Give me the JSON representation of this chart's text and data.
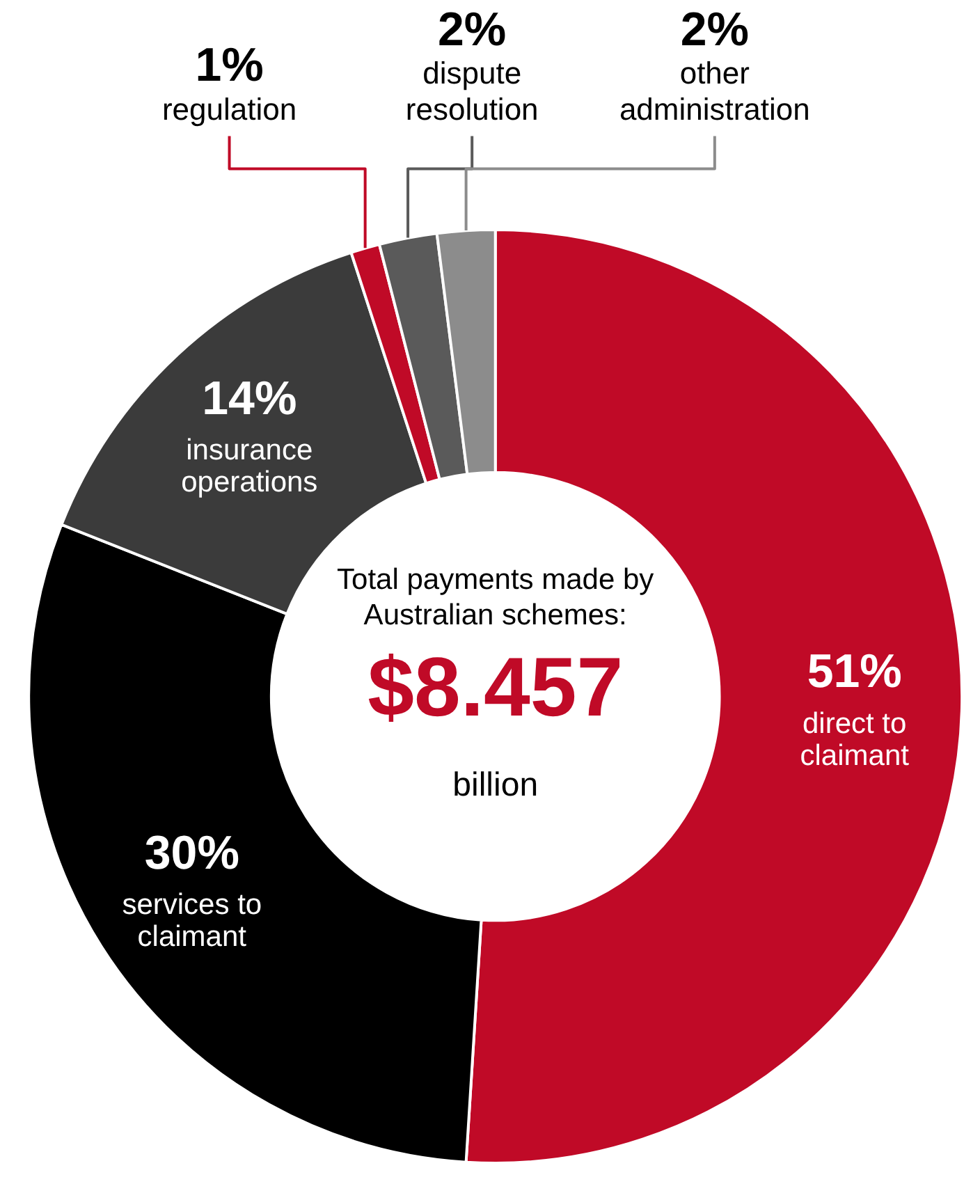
{
  "chart_data": {
    "type": "donut",
    "categories": [
      "direct to claimant",
      "services to claimant",
      "insurance operations",
      "regulation",
      "dispute resolution",
      "other administration"
    ],
    "values": [
      51,
      30,
      14,
      1,
      2,
      2
    ],
    "colors": [
      "#c00a27",
      "#000000",
      "#3b3b3b",
      "#c00a27",
      "#5a5a5a",
      "#8c8c8c"
    ],
    "value_labels": [
      "51%",
      "30%",
      "14%",
      "1%",
      "2%",
      "2%"
    ],
    "annotations": [
      "Total payments made by Australian schemes:",
      "$8.457",
      "billion"
    ]
  }
}
